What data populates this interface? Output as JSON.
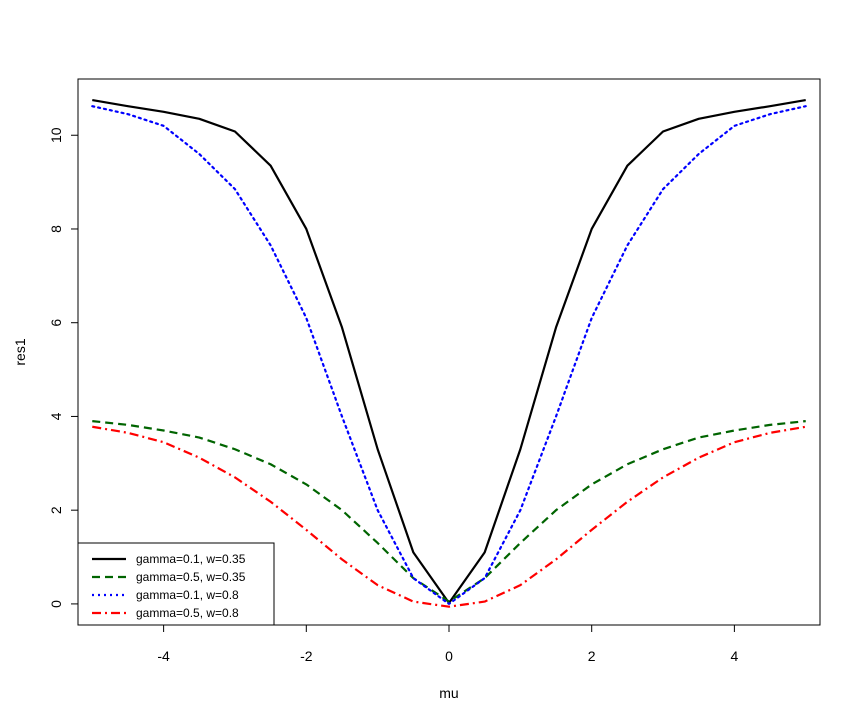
{
  "chart_data": {
    "type": "line",
    "title": "",
    "xlabel": "mu",
    "ylabel": "res1",
    "xlim": [
      -5.2,
      5.2
    ],
    "ylim": [
      -0.45,
      11.2
    ],
    "x_ticks": [
      -4,
      -2,
      0,
      2,
      4
    ],
    "y_ticks": [
      0,
      2,
      4,
      6,
      8,
      10
    ],
    "x_tick_labels": [
      "-4",
      "-2",
      "0",
      "2",
      "4"
    ],
    "y_tick_labels": [
      "0",
      "2",
      "4",
      "6",
      "8",
      "10"
    ],
    "grid": false,
    "legend_position": "bottom-left",
    "x": [
      -5,
      -4.5,
      -4,
      -3.5,
      -3,
      -2.5,
      -2,
      -1.5,
      -1,
      -0.5,
      0,
      0.5,
      1,
      1.5,
      2,
      2.5,
      3,
      3.5,
      4,
      4.5,
      5
    ],
    "series": [
      {
        "name": "gamma=0.1, w=0.35",
        "color": "#000000",
        "dash": "solid",
        "values": [
          10.75,
          10.62,
          10.5,
          10.35,
          10.08,
          9.35,
          8.0,
          5.9,
          3.3,
          1.1,
          0.02,
          1.1,
          3.3,
          5.9,
          8.0,
          9.35,
          10.08,
          10.35,
          10.5,
          10.62,
          10.75
        ]
      },
      {
        "name": "gamma=0.5, w=0.35",
        "color": "#006400",
        "dash": "dashed",
        "values": [
          3.9,
          3.82,
          3.7,
          3.55,
          3.3,
          2.98,
          2.55,
          2.0,
          1.3,
          0.55,
          0.05,
          0.55,
          1.3,
          2.0,
          2.55,
          2.98,
          3.3,
          3.55,
          3.7,
          3.82,
          3.9
        ]
      },
      {
        "name": "gamma=0.1, w=0.8",
        "color": "#0000FF",
        "dash": "dotted",
        "values": [
          10.62,
          10.45,
          10.2,
          9.6,
          8.85,
          7.65,
          6.1,
          4.0,
          2.0,
          0.55,
          0.0,
          0.55,
          2.0,
          4.0,
          6.1,
          7.65,
          8.85,
          9.6,
          10.2,
          10.45,
          10.62
        ]
      },
      {
        "name": "gamma=0.5, w=0.8",
        "color": "#FF0000",
        "dash": "dashdot",
        "values": [
          3.78,
          3.65,
          3.45,
          3.12,
          2.7,
          2.18,
          1.58,
          0.95,
          0.4,
          0.05,
          -0.06,
          0.05,
          0.4,
          0.95,
          1.58,
          2.18,
          2.7,
          3.12,
          3.45,
          3.65,
          3.78
        ]
      }
    ]
  }
}
